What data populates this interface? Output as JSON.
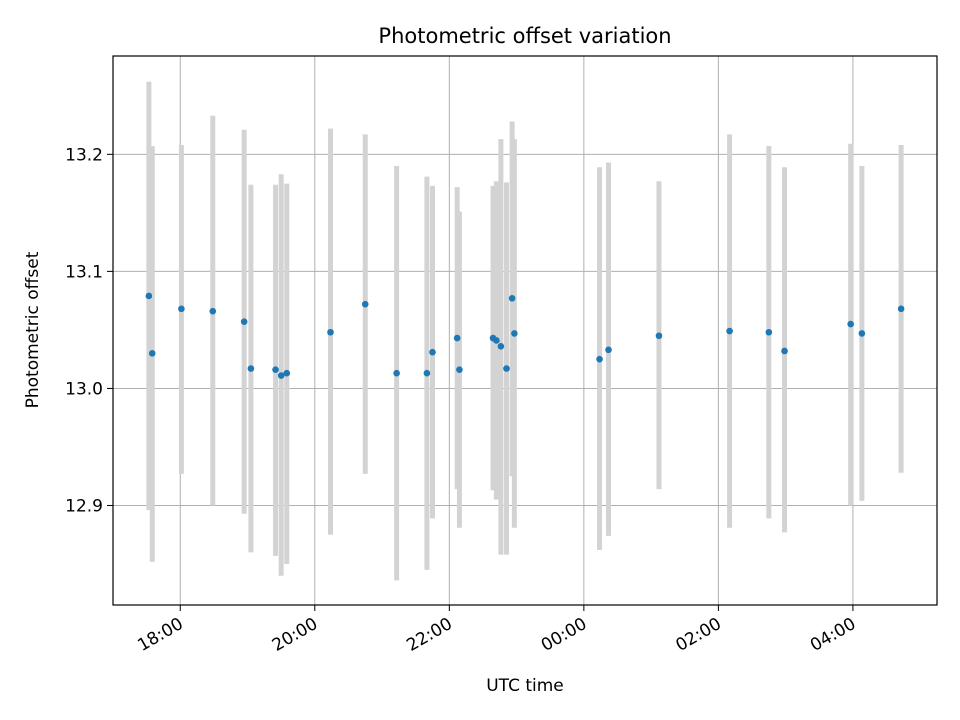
{
  "chart_data": {
    "type": "scatter",
    "title": "Photometric offset variation",
    "xlabel": "UTC time",
    "ylabel": "Photometric offset",
    "x_tick_labels": [
      "18:00",
      "20:00",
      "22:00",
      "00:00",
      "02:00",
      "04:00"
    ],
    "x_ticks": [
      "2000-01-01T18:00",
      "2000-01-01T20:00",
      "2000-01-01T22:00",
      "2000-01-02T00:00",
      "2000-01-02T02:00",
      "2000-01-02T04:00"
    ],
    "xlim": [
      "2000-01-01T17:00",
      "2000-01-02T05:15"
    ],
    "y_tick_labels": [
      "12.9",
      "13.0",
      "13.1",
      "13.2"
    ],
    "y_ticks": [
      12.9,
      13.0,
      13.1,
      13.2
    ],
    "ylim": [
      12.815,
      13.284
    ],
    "grid": true,
    "marker_color": "#1f77b4",
    "errorbar_color": "#d3d3d3",
    "points": [
      {
        "x": "2000-01-01T17:32",
        "y": 13.079,
        "ylow": 12.896,
        "yhigh": 13.262
      },
      {
        "x": "2000-01-01T17:35",
        "y": 13.03,
        "ylow": 12.852,
        "yhigh": 13.207
      },
      {
        "x": "2000-01-01T18:01",
        "y": 13.068,
        "ylow": 12.927,
        "yhigh": 13.208
      },
      {
        "x": "2000-01-01T18:29",
        "y": 13.066,
        "ylow": 12.9,
        "yhigh": 13.233
      },
      {
        "x": "2000-01-01T18:57",
        "y": 13.057,
        "ylow": 12.893,
        "yhigh": 13.221
      },
      {
        "x": "2000-01-01T19:03",
        "y": 13.017,
        "ylow": 12.86,
        "yhigh": 13.174
      },
      {
        "x": "2000-01-01T19:25",
        "y": 13.016,
        "ylow": 12.857,
        "yhigh": 13.174
      },
      {
        "x": "2000-01-01T19:30",
        "y": 13.011,
        "ylow": 12.84,
        "yhigh": 13.183
      },
      {
        "x": "2000-01-01T19:35",
        "y": 13.013,
        "ylow": 12.85,
        "yhigh": 13.175
      },
      {
        "x": "2000-01-01T20:14",
        "y": 13.048,
        "ylow": 12.875,
        "yhigh": 13.222
      },
      {
        "x": "2000-01-01T20:45",
        "y": 13.072,
        "ylow": 12.927,
        "yhigh": 13.217
      },
      {
        "x": "2000-01-01T21:13",
        "y": 13.013,
        "ylow": 12.836,
        "yhigh": 13.19
      },
      {
        "x": "2000-01-01T21:40",
        "y": 13.013,
        "ylow": 12.845,
        "yhigh": 13.181
      },
      {
        "x": "2000-01-01T21:45",
        "y": 13.031,
        "ylow": 12.889,
        "yhigh": 13.173
      },
      {
        "x": "2000-01-01T22:07",
        "y": 13.043,
        "ylow": 12.914,
        "yhigh": 13.172
      },
      {
        "x": "2000-01-01T22:09",
        "y": 13.016,
        "ylow": 12.881,
        "yhigh": 13.151
      },
      {
        "x": "2000-01-01T22:39",
        "y": 13.043,
        "ylow": 12.913,
        "yhigh": 13.173
      },
      {
        "x": "2000-01-01T22:42",
        "y": 13.041,
        "ylow": 12.905,
        "yhigh": 13.177
      },
      {
        "x": "2000-01-01T22:46",
        "y": 13.036,
        "ylow": 12.858,
        "yhigh": 13.213
      },
      {
        "x": "2000-01-01T22:51",
        "y": 13.017,
        "ylow": 12.858,
        "yhigh": 13.176
      },
      {
        "x": "2000-01-01T22:56",
        "y": 13.077,
        "ylow": 12.925,
        "yhigh": 13.228
      },
      {
        "x": "2000-01-01T22:58",
        "y": 13.047,
        "ylow": 12.881,
        "yhigh": 13.213
      },
      {
        "x": "2000-01-02T00:14",
        "y": 13.025,
        "ylow": 12.862,
        "yhigh": 13.189
      },
      {
        "x": "2000-01-02T00:22",
        "y": 13.033,
        "ylow": 12.874,
        "yhigh": 13.193
      },
      {
        "x": "2000-01-02T01:07",
        "y": 13.045,
        "ylow": 12.914,
        "yhigh": 13.177
      },
      {
        "x": "2000-01-02T02:10",
        "y": 13.049,
        "ylow": 12.881,
        "yhigh": 13.217
      },
      {
        "x": "2000-01-02T02:45",
        "y": 13.048,
        "ylow": 12.889,
        "yhigh": 13.207
      },
      {
        "x": "2000-01-02T02:59",
        "y": 13.032,
        "ylow": 12.877,
        "yhigh": 13.189
      },
      {
        "x": "2000-01-02T03:58",
        "y": 13.055,
        "ylow": 12.9,
        "yhigh": 13.209
      },
      {
        "x": "2000-01-02T04:08",
        "y": 13.047,
        "ylow": 12.904,
        "yhigh": 13.19
      },
      {
        "x": "2000-01-02T04:43",
        "y": 13.068,
        "ylow": 12.928,
        "yhigh": 13.208
      }
    ]
  }
}
